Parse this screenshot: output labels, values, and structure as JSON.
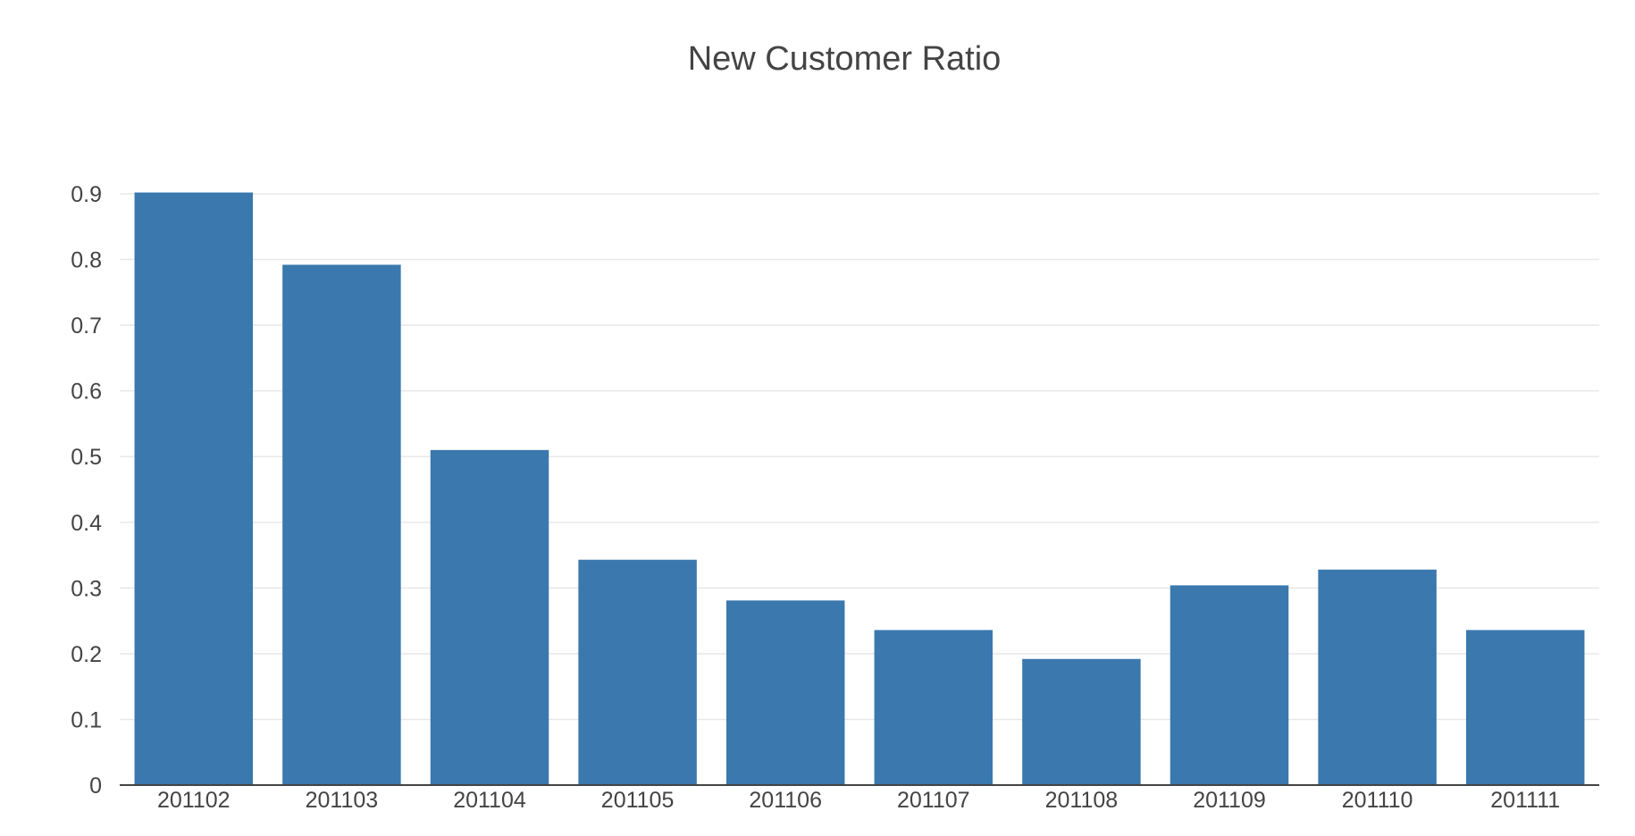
{
  "chart_data": {
    "type": "bar",
    "title": "New Customer Ratio",
    "xlabel": "",
    "ylabel": "",
    "categories": [
      "201102",
      "201103",
      "201104",
      "201105",
      "201106",
      "201107",
      "201108",
      "201109",
      "201110",
      "201111"
    ],
    "values": [
      0.902,
      0.792,
      0.51,
      0.343,
      0.281,
      0.236,
      0.192,
      0.304,
      0.328,
      0.236
    ],
    "ylim": [
      0,
      0.9
    ],
    "yticks": [
      "0",
      "0.1",
      "0.2",
      "0.3",
      "0.4",
      "0.5",
      "0.6",
      "0.7",
      "0.8",
      "0.9"
    ],
    "grid": true,
    "bar_color": "#3a78ae",
    "grid_color": "#e8e8e8",
    "text_color": "#444444"
  }
}
